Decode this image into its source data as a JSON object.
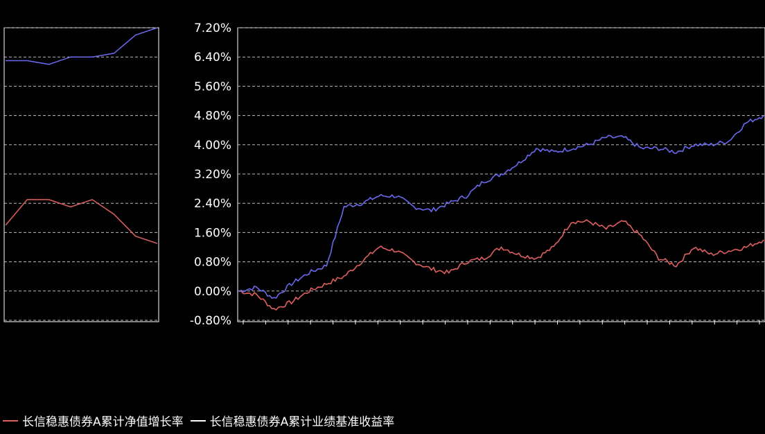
{
  "chart_data": {
    "type": "line",
    "title": "",
    "y_tick_labels": [
      "7.20%",
      "6.40%",
      "5.60%",
      "4.80%",
      "4.00%",
      "3.20%",
      "2.40%",
      "1.60%",
      "0.80%",
      "0.00%",
      "-0.80%"
    ],
    "ylim": [
      -0.8,
      7.2
    ],
    "grid": true,
    "legend_position": "bottom-left",
    "series": [
      {
        "name": "长信稳惠债券A累计净值增长率",
        "color": "#e06060",
        "values": [
          0.0,
          -0.1,
          -0.5,
          -0.3,
          0.0,
          0.2,
          0.4,
          0.8,
          1.2,
          1.1,
          0.8,
          0.6,
          0.5,
          0.8,
          0.9,
          1.2,
          1.0,
          0.9,
          1.2,
          1.9,
          1.9,
          1.7,
          1.9,
          1.5,
          0.9,
          0.7,
          1.2,
          1.0,
          1.1,
          1.2,
          1.4
        ]
      },
      {
        "name": "长信稳惠债券A累计业绩基准收益率",
        "color": "#6a6af0",
        "values": [
          0.0,
          0.1,
          -0.2,
          0.2,
          0.5,
          0.7,
          2.3,
          2.4,
          2.6,
          2.6,
          2.3,
          2.2,
          2.4,
          2.6,
          3.0,
          3.2,
          3.5,
          3.9,
          3.8,
          3.9,
          4.0,
          4.2,
          4.2,
          3.9,
          3.9,
          3.8,
          4.0,
          4.0,
          4.1,
          4.6,
          4.8
        ]
      }
    ]
  },
  "legend": {
    "series1_label": "长信稳惠债券A累计净值增长率",
    "series2_label": "长信稳惠债券A累计业绩基准收益率"
  }
}
